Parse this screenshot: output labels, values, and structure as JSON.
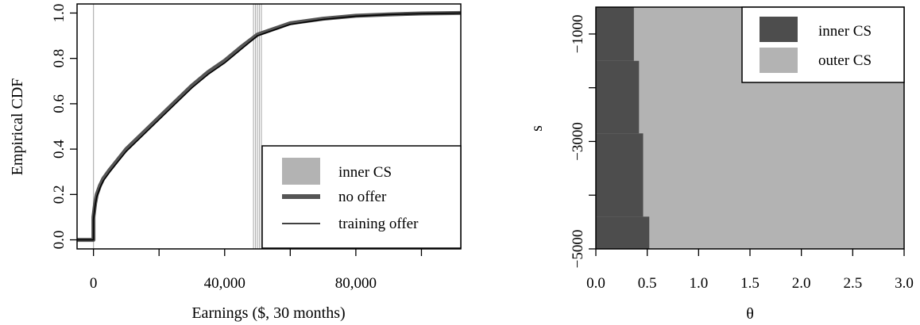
{
  "chart_data": [
    {
      "type": "line",
      "xlabel": "Earnings ($, 30 months)",
      "ylabel": "Empirical CDF",
      "xlim": [
        -5000,
        112000
      ],
      "ylim": [
        -0.04,
        1.04
      ],
      "x_ticks": [
        0,
        40000,
        80000
      ],
      "x_tick_labels": [
        "0",
        "40,000",
        "80,000"
      ],
      "y_ticks": [
        0,
        0.2,
        0.4,
        0.6,
        0.8,
        1.0
      ],
      "y_tick_labels": [
        "0.0",
        "0.2",
        "0.4",
        "0.6",
        "0.8",
        "1.0"
      ],
      "inner_cs_lines": [
        0,
        48800,
        49400,
        50000,
        50600,
        51200
      ],
      "series": [
        {
          "name": "no offer",
          "color": "#555555",
          "x": [
            -5000,
            0,
            0,
            500,
            1000,
            2000,
            3000,
            5000,
            7500,
            10000,
            15000,
            20000,
            25000,
            30000,
            35000,
            40000,
            45000,
            50000,
            55000,
            60000,
            70000,
            80000,
            90000,
            100000,
            112000
          ],
          "y": [
            0.0,
            0.0,
            0.1,
            0.16,
            0.2,
            0.24,
            0.27,
            0.31,
            0.355,
            0.4,
            0.47,
            0.54,
            0.61,
            0.68,
            0.74,
            0.79,
            0.85,
            0.905,
            0.93,
            0.955,
            0.975,
            0.988,
            0.994,
            0.998,
            1.0
          ]
        },
        {
          "name": "training offer",
          "color": "#000000",
          "x": [
            -5000,
            0,
            0,
            500,
            1000,
            2000,
            3000,
            5000,
            7500,
            10000,
            15000,
            20000,
            25000,
            30000,
            35000,
            40000,
            45000,
            50000,
            55000,
            60000,
            70000,
            80000,
            90000,
            100000,
            112000
          ],
          "y": [
            0.0,
            0.0,
            0.09,
            0.15,
            0.19,
            0.23,
            0.26,
            0.3,
            0.345,
            0.39,
            0.46,
            0.53,
            0.6,
            0.67,
            0.73,
            0.78,
            0.84,
            0.9,
            0.925,
            0.95,
            0.972,
            0.986,
            0.993,
            0.997,
            1.0
          ]
        }
      ],
      "legend": {
        "position": "bottom-right",
        "entries": [
          {
            "label": "inner CS",
            "style": "box",
            "color": "#b3b3b3"
          },
          {
            "label": "no offer",
            "style": "thick-line",
            "color": "#555555"
          },
          {
            "label": "training offer",
            "style": "line",
            "color": "#000000"
          }
        ]
      }
    },
    {
      "type": "area",
      "xlabel": "θ",
      "ylabel": "s",
      "xlim": [
        0,
        3.0
      ],
      "ylim": [
        -5000,
        -500
      ],
      "x_ticks": [
        0,
        0.5,
        1.0,
        1.5,
        2.0,
        2.5,
        3.0
      ],
      "x_tick_labels": [
        "0.0",
        "0.5",
        "1.0",
        "1.5",
        "2.0",
        "2.5",
        "3.0"
      ],
      "y_ticks": [
        -1000,
        -3000,
        -5000
      ],
      "y_tick_labels": [
        "−1000",
        "−3000",
        "−5000"
      ],
      "inner_cs_boundary": [
        {
          "s_top": -500,
          "s_bottom": -1500,
          "theta": 0.37
        },
        {
          "s_top": -1500,
          "s_bottom": -2850,
          "theta": 0.42
        },
        {
          "s_top": -2850,
          "s_bottom": -4400,
          "theta": 0.46
        },
        {
          "s_top": -4400,
          "s_bottom": -5000,
          "theta": 0.52
        }
      ],
      "legend": {
        "position": "top-right",
        "entries": [
          {
            "label": "inner CS",
            "style": "box",
            "color": "#4d4d4d"
          },
          {
            "label": "outer CS",
            "style": "box",
            "color": "#b3b3b3"
          }
        ]
      }
    }
  ]
}
